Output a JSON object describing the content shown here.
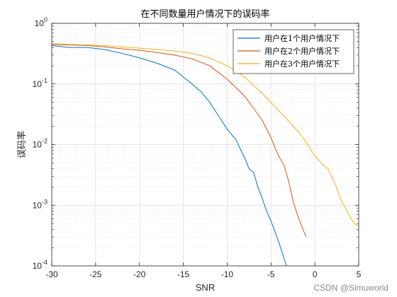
{
  "watermark": "CSDN @Simuworld",
  "chart_data": {
    "type": "line",
    "title": "在不同数量用户情况下的误码率",
    "xlabel": "SNR",
    "ylabel": "误码率",
    "xlim": [
      -30,
      5
    ],
    "ylim": [
      0.0001,
      1
    ],
    "yscale": "log",
    "grid": true,
    "minor_grid": true,
    "legend_position": "top-right",
    "xticks": [
      -30,
      -25,
      -20,
      -15,
      -10,
      -5,
      0,
      5
    ],
    "yticks": [
      {
        "value": 1,
        "base": "10",
        "exp": "0"
      },
      {
        "value": 0.1,
        "base": "10",
        "exp": "-1"
      },
      {
        "value": 0.01,
        "base": "10",
        "exp": "-2"
      },
      {
        "value": 0.001,
        "base": "10",
        "exp": "-3"
      },
      {
        "value": 0.0001,
        "base": "10",
        "exp": "-4"
      }
    ],
    "series": [
      {
        "name": "用户在1个用户情况下",
        "color": "#0072BD",
        "x": [
          -30,
          -28,
          -26,
          -24,
          -22,
          -20,
          -18,
          -16,
          -14,
          -13,
          -12,
          -11,
          -10,
          -9,
          -8,
          -7.5,
          -7,
          -6.5,
          -6,
          -5.5,
          -5,
          -4.5,
          -4,
          -3.5,
          -3
        ],
        "y": [
          0.43,
          0.4,
          0.4,
          0.37,
          0.32,
          0.27,
          0.22,
          0.17,
          0.1,
          0.075,
          0.05,
          0.03,
          0.018,
          0.012,
          0.006,
          0.004,
          0.0035,
          0.002,
          0.0013,
          0.0008,
          0.00055,
          0.00035,
          0.00022,
          0.00013,
          8e-05
        ]
      },
      {
        "name": "用户在2个用户情况下",
        "color": "#D95319",
        "x": [
          -30,
          -28,
          -26,
          -24,
          -22,
          -20,
          -18,
          -16,
          -14,
          -12,
          -10,
          -8,
          -7,
          -6,
          -5,
          -4.5,
          -4,
          -3.5,
          -3,
          -2.5,
          -2,
          -1.5,
          -1
        ],
        "y": [
          0.45,
          0.44,
          0.43,
          0.41,
          0.38,
          0.36,
          0.33,
          0.3,
          0.26,
          0.2,
          0.12,
          0.063,
          0.04,
          0.025,
          0.013,
          0.0085,
          0.006,
          0.0045,
          0.0025,
          0.0012,
          0.0007,
          0.00045,
          0.0003
        ]
      },
      {
        "name": "用户在3个用户情况下",
        "color": "#EDB120",
        "x": [
          -30,
          -28,
          -26,
          -24,
          -22,
          -20,
          -18,
          -16,
          -14,
          -12,
          -10,
          -8,
          -6,
          -4,
          -2,
          -1,
          0,
          1,
          1.5,
          2,
          2.5,
          3,
          3.5,
          4,
          4.5,
          5
        ],
        "y": [
          0.46,
          0.45,
          0.44,
          0.43,
          0.41,
          0.39,
          0.37,
          0.35,
          0.32,
          0.27,
          0.2,
          0.13,
          0.07,
          0.035,
          0.017,
          0.011,
          0.0065,
          0.0045,
          0.004,
          0.0028,
          0.0019,
          0.0012,
          0.0009,
          0.00065,
          0.0005,
          0.00045
        ]
      }
    ]
  }
}
